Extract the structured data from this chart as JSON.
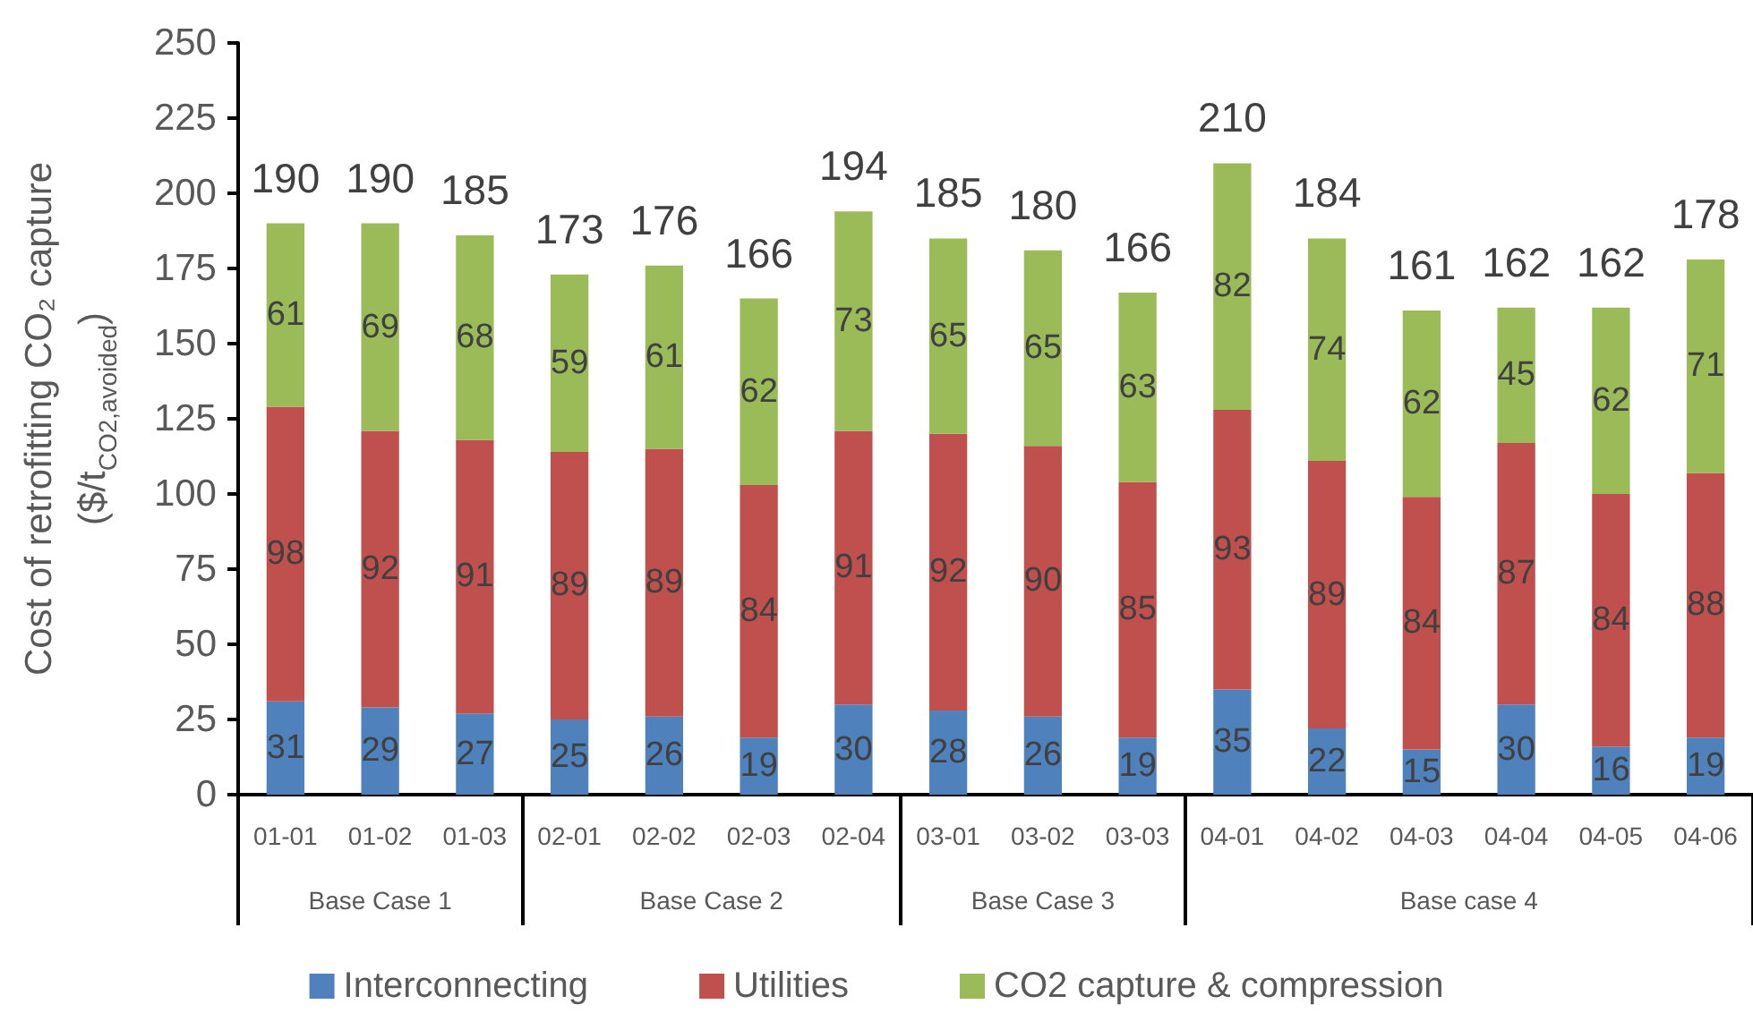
{
  "chart_data": {
    "type": "bar",
    "stacked": true,
    "ylabel": "Cost of retrofitting CO₂ capture\n($/t$_{CO2,avoided}$)",
    "categories": [
      "01-01",
      "01-02",
      "01-03",
      "02-01",
      "02-02",
      "02-03",
      "02-04",
      "03-01",
      "03-02",
      "03-03",
      "04-01",
      "04-02",
      "04-03",
      "04-04",
      "04-05",
      "04-06"
    ],
    "series": [
      {
        "name": "Interconnecting",
        "color": "#4f81bd",
        "values": [
          31,
          29,
          27,
          25,
          26,
          19,
          30,
          28,
          26,
          19,
          35,
          22,
          15,
          30,
          16,
          19
        ]
      },
      {
        "name": "Utilities",
        "color": "#c0504d",
        "values": [
          98,
          92,
          91,
          89,
          89,
          84,
          91,
          92,
          90,
          85,
          93,
          89,
          84,
          87,
          84,
          88
        ]
      },
      {
        "name": "CO2 capture & compression",
        "color": "#9bbb59",
        "values": [
          61,
          69,
          68,
          59,
          61,
          62,
          73,
          65,
          65,
          63,
          82,
          74,
          62,
          45,
          62,
          71
        ]
      }
    ],
    "totals": [
      "190",
      "190",
      "185",
      "173",
      "176",
      "166",
      "194",
      "185",
      "180",
      "166",
      "210",
      "184",
      "161",
      "162",
      "162",
      "178"
    ],
    "data_labels": true,
    "ylim": [
      0,
      250
    ],
    "yticks": [
      0,
      25,
      50,
      75,
      100,
      125,
      150,
      175,
      200,
      225,
      250
    ],
    "grid": false,
    "legend": "bottom",
    "annotations": [
      "Base Case 1",
      "Base Case 2",
      "Base Case 3",
      "Base case 4"
    ]
  }
}
